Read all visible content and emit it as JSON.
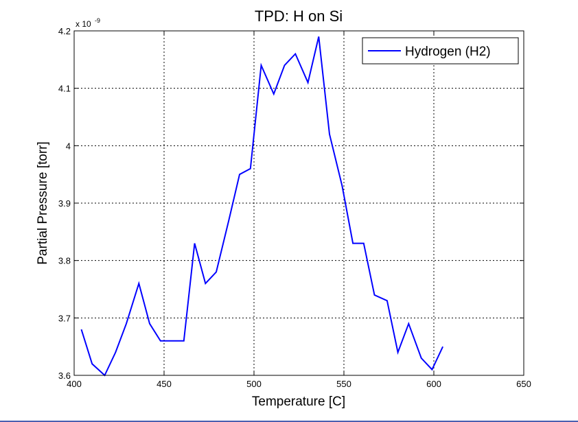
{
  "chart_data": {
    "type": "line",
    "title": "TPD: H on Si",
    "xlabel": "Temperature [C]",
    "ylabel": "Partial Pressure [torr]",
    "y_exponent_label": "x 10",
    "y_exponent_power": "-9",
    "xlim": [
      400,
      650
    ],
    "ylim": [
      3.6,
      4.2
    ],
    "xticks": [
      "400",
      "450",
      "500",
      "550",
      "600",
      "650"
    ],
    "yticks": [
      "3.6",
      "3.7",
      "3.8",
      "3.9",
      "4",
      "4.1",
      "4.2"
    ],
    "grid": true,
    "legend_position": "top-right",
    "series": [
      {
        "name": "Hydrogen (H2)",
        "color": "#0000ff",
        "x": [
          404,
          410,
          417,
          423,
          429,
          436,
          442,
          448,
          454,
          461,
          467,
          473,
          479,
          486,
          492,
          498,
          504,
          511,
          517,
          523,
          530,
          536,
          542,
          549,
          555,
          561,
          567,
          574,
          580,
          586,
          593,
          599,
          605
        ],
        "y": [
          3.68,
          3.62,
          3.6,
          3.64,
          3.69,
          3.76,
          3.69,
          3.66,
          3.66,
          3.66,
          3.83,
          3.76,
          3.78,
          3.87,
          3.95,
          3.96,
          4.14,
          4.09,
          4.14,
          4.16,
          4.11,
          4.19,
          4.02,
          3.93,
          3.83,
          3.83,
          3.74,
          3.73,
          3.64,
          3.69,
          3.63,
          3.61,
          3.65
        ]
      }
    ]
  }
}
